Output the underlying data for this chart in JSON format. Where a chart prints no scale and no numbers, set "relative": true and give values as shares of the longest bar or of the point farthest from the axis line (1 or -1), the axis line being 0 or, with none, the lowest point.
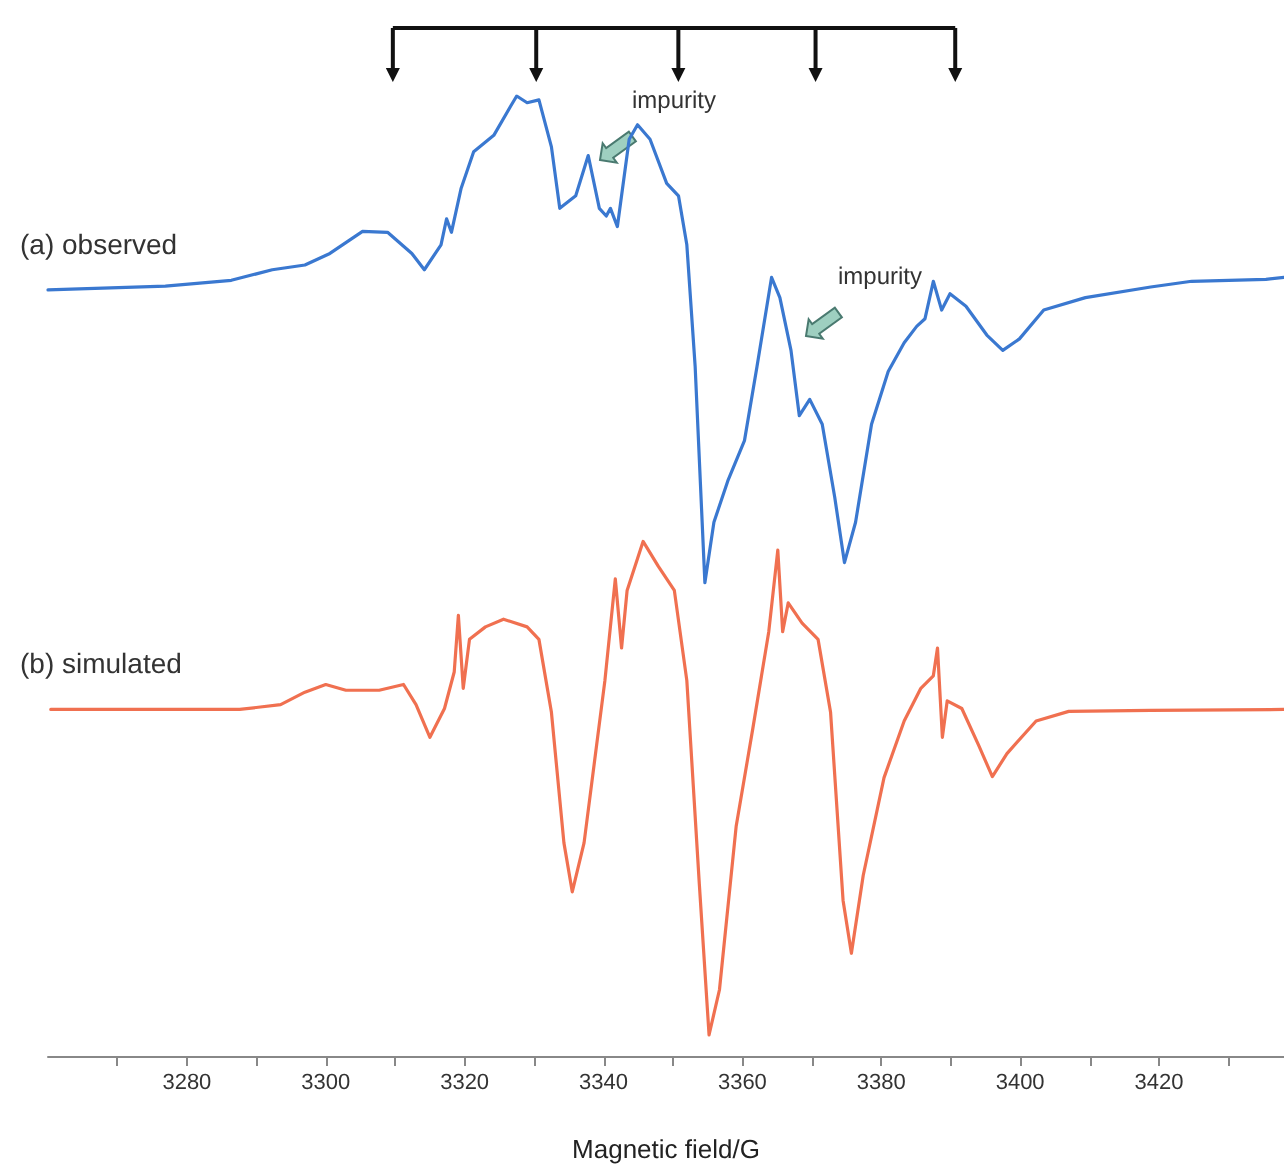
{
  "chart_data": {
    "type": "line",
    "relative": true,
    "xlabel": "Magnetic field/G",
    "xlim": [
      3260,
      3438
    ],
    "xticks": [
      {
        "value": 3270,
        "label": null
      },
      3280,
      {
        "value": 3290,
        "label": null
      },
      3300,
      {
        "value": 3310,
        "label": null
      },
      3320,
      {
        "value": 3330,
        "label": null
      },
      3340,
      {
        "value": 3350,
        "label": null
      },
      3360,
      {
        "value": 3370,
        "label": null
      },
      3380,
      {
        "value": 3390,
        "label": null
      },
      3400,
      {
        "value": 3410,
        "label": null
      },
      3420,
      {
        "value": 3430,
        "label": null
      }
    ],
    "grid": false,
    "marker": "none",
    "line_style": "solid",
    "annotations": [
      "impurity",
      "impurity"
    ],
    "series": [
      {
        "name": "(a) observed",
        "color": "#3a78d0",
        "x": [
          3260,
          3276.9,
          3286.4,
          3292.3,
          3297.0,
          3300.6,
          3305.3,
          3308.9,
          3312.4,
          3314.2,
          3316.6,
          3317.4,
          3318.1,
          3319.5,
          3321.3,
          3324.2,
          3326.6,
          3327.5,
          3329.0,
          3330.7,
          3332.5,
          3333.7,
          3336.0,
          3337.8,
          3339.4,
          3340.4,
          3341.0,
          3342.0,
          3343.7,
          3344.9,
          3346.7,
          3349.1,
          3350.8,
          3352.0,
          3353.2,
          3354.6,
          3355.9,
          3357.9,
          3360.3,
          3362.1,
          3364.2,
          3365.4,
          3367.0,
          3368.2,
          3369.7,
          3371.5,
          3373.3,
          3374.7,
          3376.3,
          3378.6,
          3381.0,
          3383.3,
          3385.1,
          3386.3,
          3387.5,
          3388.7,
          3389.9,
          3392.2,
          3395.2,
          3397.5,
          3399.9,
          3403.4,
          3409.4,
          3418.8,
          3424.7,
          3435.4,
          3438
        ],
        "values": [
          0.798,
          0.802,
          0.808,
          0.819,
          0.824,
          0.836,
          0.859,
          0.858,
          0.836,
          0.819,
          0.845,
          0.872,
          0.858,
          0.904,
          0.942,
          0.959,
          0.989,
          1,
          0.993,
          0.996,
          0.947,
          0.883,
          0.896,
          0.938,
          0.883,
          0.875,
          0.883,
          0.864,
          0.955,
          0.97,
          0.955,
          0.909,
          0.896,
          0.845,
          0.718,
          0.493,
          0.556,
          0.599,
          0.641,
          0.718,
          0.811,
          0.79,
          0.735,
          0.667,
          0.684,
          0.658,
          0.582,
          0.514,
          0.556,
          0.658,
          0.713,
          0.743,
          0.76,
          0.768,
          0.807,
          0.777,
          0.794,
          0.781,
          0.751,
          0.735,
          0.747,
          0.777,
          0.79,
          0.801,
          0.807,
          0.809,
          0.811
        ]
      },
      {
        "name": "(b) simulated",
        "color": "#f07050",
        "x": [
          3260.4,
          3287.6,
          3293.5,
          3297.0,
          3300.0,
          3302.9,
          3307.7,
          3311.2,
          3313.0,
          3315.0,
          3317.1,
          3318.5,
          3319.1,
          3319.8,
          3320.7,
          3323.0,
          3325.6,
          3329.0,
          3330.7,
          3332.5,
          3334.3,
          3335.5,
          3337.2,
          3340.2,
          3341.7,
          3342.6,
          3343.4,
          3345.7,
          3347.9,
          3350.2,
          3352.0,
          3353.8,
          3355.2,
          3356.7,
          3359.1,
          3361.5,
          3363.8,
          3365.1,
          3365.8,
          3366.6,
          3368.6,
          3370.9,
          3372.7,
          3374.5,
          3375.7,
          3377.4,
          3380.4,
          3383.3,
          3385.7,
          3387.5,
          3388.1,
          3388.8,
          3389.5,
          3391.6,
          3394.0,
          3396.0,
          3398.1,
          3402.3,
          3407.0,
          3418.8,
          3438
        ],
        "values": [
          0.361,
          0.361,
          0.366,
          0.379,
          0.387,
          0.381,
          0.381,
          0.387,
          0.366,
          0.332,
          0.362,
          0.4,
          0.459,
          0.383,
          0.434,
          0.447,
          0.455,
          0.447,
          0.434,
          0.358,
          0.222,
          0.171,
          0.222,
          0.391,
          0.497,
          0.425,
          0.485,
          0.536,
          0.51,
          0.485,
          0.391,
          0.179,
          0.022,
          0.069,
          0.239,
          0.341,
          0.442,
          0.527,
          0.442,
          0.472,
          0.451,
          0.434,
          0.358,
          0.162,
          0.107,
          0.188,
          0.29,
          0.349,
          0.383,
          0.396,
          0.425,
          0.332,
          0.37,
          0.362,
          0.324,
          0.291,
          0.315,
          0.349,
          0.359,
          0.36,
          0.361
        ]
      }
    ]
  }
}
